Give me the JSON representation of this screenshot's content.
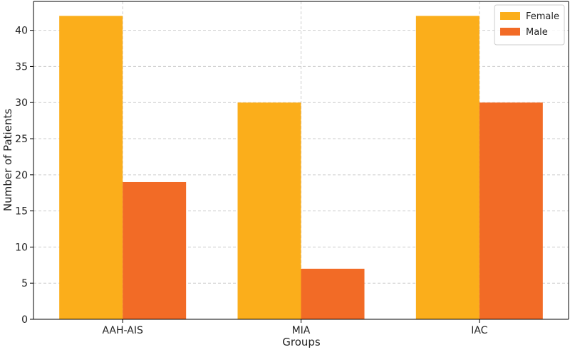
{
  "chart_data": {
    "type": "bar",
    "categories": [
      "AAH-AIS",
      "MIA",
      "IAC"
    ],
    "series": [
      {
        "name": "Female",
        "color": "#FBAE1B",
        "values": [
          42,
          30,
          42
        ]
      },
      {
        "name": "Male",
        "color": "#F26B26",
        "values": [
          19,
          7,
          30
        ]
      }
    ],
    "xlabel": "Groups",
    "ylabel": "Number of Patients",
    "ylim": [
      0,
      44
    ],
    "yticks": [
      0,
      5,
      10,
      15,
      20,
      25,
      30,
      35,
      40
    ],
    "grid": true,
    "legend": "top-right"
  }
}
